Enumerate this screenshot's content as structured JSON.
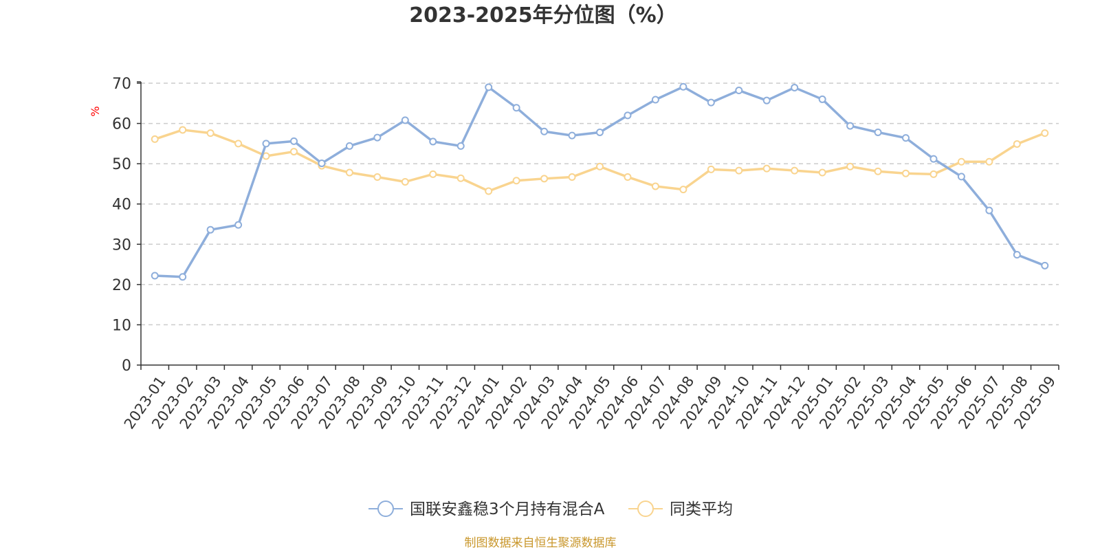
{
  "chart_data": {
    "type": "line",
    "title": "2023-2025年分位图（%）",
    "ylabel": "%",
    "xlabel": "",
    "ylim": [
      0,
      70
    ],
    "yticks": [
      0,
      10,
      20,
      30,
      40,
      50,
      60,
      70
    ],
    "grid": true,
    "legend_position": "bottom",
    "categories": [
      "2023-01",
      "2023-02",
      "2023-03",
      "2023-04",
      "2023-05",
      "2023-06",
      "2023-07",
      "2023-08",
      "2023-09",
      "2023-10",
      "2023-11",
      "2023-12",
      "2024-01",
      "2024-02",
      "2024-03",
      "2024-04",
      "2024-05",
      "2024-06",
      "2024-07",
      "2024-08",
      "2024-09",
      "2024-10",
      "2024-11",
      "2024-12",
      "2025-01",
      "2025-02",
      "2025-03",
      "2025-04",
      "2025-05",
      "2025-06",
      "2025-07",
      "2025-08",
      "2025-09"
    ],
    "series": [
      {
        "name": "国联安鑫稳3个月持有混合A",
        "color": "#8eaedb",
        "values": [
          22.2,
          21.9,
          33.6,
          34.8,
          55.0,
          55.6,
          50.1,
          54.4,
          56.5,
          60.8,
          55.5,
          54.4,
          69.0,
          63.9,
          58.0,
          57.0,
          57.8,
          62.0,
          65.9,
          69.1,
          65.2,
          68.2,
          65.7,
          68.9,
          66.0,
          59.4,
          57.8,
          56.4,
          51.2,
          46.8,
          38.4,
          27.4,
          24.7
        ]
      },
      {
        "name": "同类平均",
        "color": "#f9d48f",
        "values": [
          56.1,
          58.4,
          57.6,
          55.0,
          51.9,
          53.0,
          49.5,
          47.8,
          46.7,
          45.5,
          47.4,
          46.4,
          43.2,
          45.8,
          46.3,
          46.7,
          49.3,
          46.7,
          44.4,
          43.6,
          48.6,
          48.3,
          48.8,
          48.3,
          47.8,
          49.3,
          48.1,
          47.6,
          47.4,
          50.5,
          50.5,
          54.9,
          57.6
        ]
      }
    ],
    "unit_color": "#ff0000",
    "source_text": "制图数据来自恒生聚源数据库",
    "source_color": "#c9972c",
    "axis_color": "#333333",
    "grid_color": "#cccccc"
  }
}
